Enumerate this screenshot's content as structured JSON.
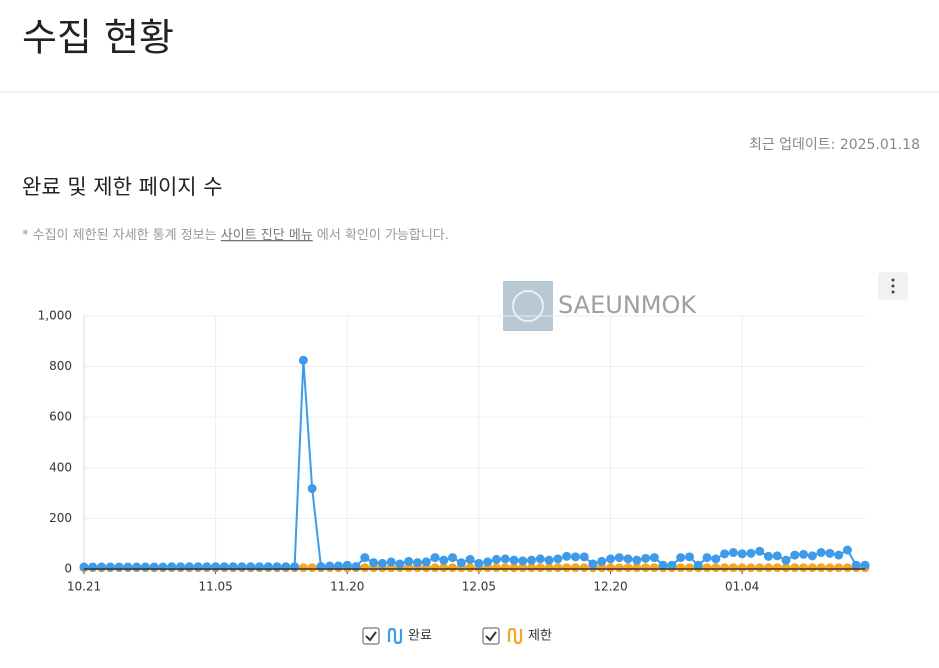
{
  "header": {
    "title": "수집 현황"
  },
  "updated": "최근 업데이트: 2025.01.18",
  "section": {
    "title": "완료 및 제한 페이지 수",
    "note_prefix": "* 수집이 제한된 자세한 통계 정보는",
    "note_link": "사이트 진단 메뉴",
    "note_suffix": "에서 확인이 가능합니다."
  },
  "watermark": "SAEUNMOK",
  "chart_data": {
    "type": "line",
    "categories": [
      "10.21",
      null,
      null,
      null,
      null,
      null,
      null,
      null,
      null,
      null,
      null,
      null,
      null,
      null,
      null,
      "11.05",
      null,
      null,
      null,
      null,
      null,
      null,
      null,
      null,
      null,
      null,
      null,
      null,
      null,
      null,
      "11.20",
      null,
      null,
      null,
      null,
      null,
      null,
      null,
      null,
      null,
      null,
      null,
      null,
      null,
      null,
      "12.05",
      null,
      null,
      null,
      null,
      null,
      null,
      null,
      null,
      null,
      null,
      null,
      null,
      null,
      null,
      "12.20",
      null,
      null,
      null,
      null,
      null,
      null,
      null,
      null,
      null,
      null,
      null,
      null,
      null,
      null,
      "01.04",
      null,
      null,
      null,
      null,
      null,
      null,
      null,
      null,
      null,
      null,
      null,
      null,
      null,
      null
    ],
    "series": [
      {
        "name": "완료",
        "color": "#3d9be9",
        "values": [
          8,
          8,
          8,
          8,
          8,
          8,
          8,
          8,
          8,
          8,
          9,
          9,
          9,
          9,
          9,
          9,
          9,
          9,
          9,
          9,
          9,
          9,
          9,
          9,
          9,
          825,
          318,
          10,
          12,
          12,
          15,
          10,
          45,
          25,
          22,
          28,
          20,
          30,
          25,
          28,
          45,
          35,
          45,
          25,
          38,
          22,
          28,
          38,
          40,
          35,
          32,
          35,
          40,
          35,
          40,
          50,
          48,
          48,
          20,
          30,
          40,
          45,
          40,
          35,
          42,
          45,
          15,
          15,
          45,
          48,
          15,
          45,
          40,
          60,
          65,
          60,
          62,
          70,
          50,
          52,
          35,
          55,
          58,
          52,
          65,
          62,
          55,
          75,
          15,
          15
        ]
      },
      {
        "name": "제한",
        "color": "#f5a623",
        "values": [
          5,
          5,
          5,
          5,
          5,
          5,
          5,
          5,
          5,
          5,
          5,
          5,
          5,
          5,
          5,
          5,
          5,
          5,
          5,
          5,
          5,
          5,
          5,
          5,
          5,
          5,
          5,
          5,
          5,
          5,
          5,
          5,
          5,
          5,
          5,
          5,
          5,
          5,
          5,
          5,
          5,
          5,
          5,
          5,
          5,
          5,
          5,
          5,
          5,
          5,
          5,
          5,
          5,
          5,
          5,
          5,
          5,
          5,
          5,
          5,
          5,
          5,
          5,
          5,
          5,
          5,
          5,
          5,
          5,
          5,
          5,
          5,
          5,
          5,
          5,
          5,
          5,
          5,
          5,
          5,
          5,
          5,
          5,
          5,
          5,
          5,
          5,
          5,
          5,
          5
        ]
      }
    ],
    "ylim": [
      0,
      1000
    ],
    "yticks": [
      0,
      200,
      400,
      600,
      800,
      {
        "value": 1000,
        "label": "1,000"
      }
    ],
    "grid": true
  }
}
